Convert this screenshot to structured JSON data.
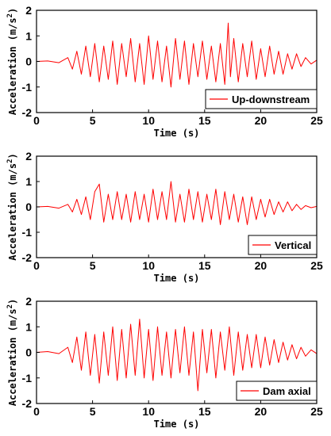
{
  "chart_data": [
    {
      "type": "line",
      "xlabel": "Time (s)",
      "ylabel": "Acceleration (m/s",
      "ylabel_sup": "2",
      "ylabel_close": ")",
      "xlim": [
        0,
        25
      ],
      "ylim": [
        -2,
        2
      ],
      "xticks": [
        0,
        5,
        10,
        15,
        20,
        25
      ],
      "yticks": [
        -2,
        -1,
        0,
        1,
        2
      ],
      "grid": false,
      "legend_position": "bottom-right",
      "series": [
        {
          "name": "Up-downstream",
          "color": "#ff0000",
          "x": [
            0,
            1,
            2,
            2.8,
            3.2,
            3.6,
            4.0,
            4.4,
            4.8,
            5.2,
            5.6,
            6.0,
            6.4,
            6.8,
            7.2,
            7.6,
            8.0,
            8.4,
            8.8,
            9.2,
            9.6,
            10.0,
            10.4,
            10.8,
            11.2,
            11.6,
            12.0,
            12.4,
            12.8,
            13.2,
            13.6,
            14.0,
            14.4,
            14.8,
            15.2,
            15.6,
            16.0,
            16.4,
            16.8,
            17.1,
            17.3,
            17.6,
            18.0,
            18.4,
            18.8,
            19.2,
            19.6,
            20.0,
            20.4,
            20.8,
            21.2,
            21.6,
            22.0,
            22.4,
            22.8,
            23.2,
            23.6,
            24.0,
            24.5,
            25.0
          ],
          "y": [
            0,
            0.02,
            -0.05,
            0.15,
            -0.3,
            0.4,
            -0.5,
            0.6,
            -0.6,
            0.7,
            -0.8,
            0.6,
            -0.7,
            0.8,
            -0.9,
            0.7,
            -0.6,
            0.9,
            -0.8,
            0.7,
            -0.9,
            1.0,
            -0.7,
            0.8,
            -0.8,
            0.6,
            -1.0,
            0.9,
            -0.7,
            0.8,
            -0.9,
            0.7,
            -0.6,
            0.8,
            -0.7,
            0.6,
            -0.8,
            0.7,
            -0.9,
            1.5,
            -0.6,
            0.9,
            -0.8,
            0.7,
            -0.6,
            0.8,
            -0.7,
            0.5,
            -0.6,
            0.6,
            -0.5,
            0.4,
            -0.5,
            0.3,
            -0.3,
            0.3,
            -0.2,
            0.15,
            -0.1,
            0.05
          ]
        }
      ]
    },
    {
      "type": "line",
      "xlabel": "Time (s)",
      "ylabel": "Acceleration (m/s",
      "ylabel_sup": "2",
      "ylabel_close": ")",
      "xlim": [
        0,
        25
      ],
      "ylim": [
        -2,
        2
      ],
      "xticks": [
        0,
        5,
        10,
        15,
        20,
        25
      ],
      "yticks": [
        -2,
        -1,
        0,
        1,
        2
      ],
      "grid": false,
      "legend_position": "bottom-right",
      "series": [
        {
          "name": "Vertical",
          "color": "#ff0000",
          "x": [
            0,
            1,
            2,
            2.8,
            3.2,
            3.6,
            4.0,
            4.4,
            4.8,
            5.2,
            5.6,
            6.0,
            6.4,
            6.8,
            7.2,
            7.6,
            8.0,
            8.4,
            8.8,
            9.2,
            9.6,
            10.0,
            10.4,
            10.8,
            11.2,
            11.6,
            12.0,
            12.4,
            12.8,
            13.2,
            13.6,
            14.0,
            14.4,
            14.8,
            15.2,
            15.6,
            16.0,
            16.4,
            16.8,
            17.2,
            17.6,
            18.0,
            18.4,
            18.8,
            19.2,
            19.6,
            20.0,
            20.4,
            20.8,
            21.2,
            21.6,
            22.0,
            22.4,
            22.8,
            23.2,
            23.6,
            24.0,
            24.5,
            25.0
          ],
          "y": [
            0,
            0.02,
            -0.05,
            0.1,
            -0.2,
            0.3,
            -0.3,
            0.4,
            -0.5,
            0.6,
            0.9,
            -0.6,
            0.5,
            -0.5,
            0.6,
            -0.5,
            0.5,
            -0.6,
            0.6,
            -0.5,
            0.5,
            -0.6,
            0.7,
            -0.5,
            0.6,
            -0.5,
            1.0,
            -0.6,
            0.5,
            -0.6,
            0.7,
            -0.5,
            0.6,
            -0.6,
            0.5,
            -0.5,
            0.7,
            -0.7,
            0.6,
            -0.5,
            0.5,
            -0.6,
            0.4,
            -0.7,
            0.4,
            -0.5,
            0.3,
            -0.4,
            0.3,
            -0.3,
            0.2,
            -0.2,
            0.2,
            -0.15,
            0.1,
            -0.1,
            0.05,
            -0.03,
            0.02
          ]
        }
      ]
    },
    {
      "type": "line",
      "xlabel": "Time (s)",
      "ylabel": "Acceleration (m/s",
      "ylabel_sup": "2",
      "ylabel_close": ")",
      "xlim": [
        0,
        25
      ],
      "ylim": [
        -2,
        2
      ],
      "xticks": [
        0,
        5,
        10,
        15,
        20,
        25
      ],
      "yticks": [
        -2,
        -1,
        0,
        1,
        2
      ],
      "grid": false,
      "legend_position": "bottom-right",
      "series": [
        {
          "name": "Dam axial",
          "color": "#ff0000",
          "x": [
            0,
            1,
            2,
            2.8,
            3.2,
            3.6,
            4.0,
            4.4,
            4.8,
            5.2,
            5.6,
            6.0,
            6.4,
            6.8,
            7.2,
            7.6,
            8.0,
            8.4,
            8.8,
            9.2,
            9.6,
            10.0,
            10.4,
            10.8,
            11.2,
            11.6,
            12.0,
            12.4,
            12.8,
            13.2,
            13.6,
            14.0,
            14.4,
            14.8,
            15.2,
            15.6,
            16.0,
            16.4,
            16.8,
            17.2,
            17.6,
            18.0,
            18.4,
            18.8,
            19.2,
            19.6,
            20.0,
            20.4,
            20.8,
            21.2,
            21.6,
            22.0,
            22.4,
            22.8,
            23.2,
            23.6,
            24.0,
            24.5,
            25.0
          ],
          "y": [
            0,
            0.03,
            -0.05,
            0.2,
            -0.4,
            0.6,
            -0.7,
            0.8,
            -0.9,
            0.7,
            -1.2,
            0.8,
            -0.9,
            1.0,
            -1.1,
            0.9,
            -1.0,
            1.1,
            -0.9,
            1.3,
            -1.0,
            0.9,
            -1.1,
            1.0,
            -0.9,
            0.8,
            -1.0,
            0.9,
            -0.8,
            1.0,
            -0.9,
            0.8,
            -1.5,
            0.9,
            -0.8,
            0.9,
            -1.0,
            0.8,
            -0.7,
            1.0,
            -0.9,
            0.8,
            -0.7,
            0.7,
            -0.6,
            0.7,
            -0.6,
            0.6,
            -0.5,
            0.5,
            -0.4,
            0.4,
            -0.3,
            0.3,
            -0.25,
            0.2,
            -0.15,
            0.1,
            -0.05
          ]
        }
      ]
    }
  ]
}
